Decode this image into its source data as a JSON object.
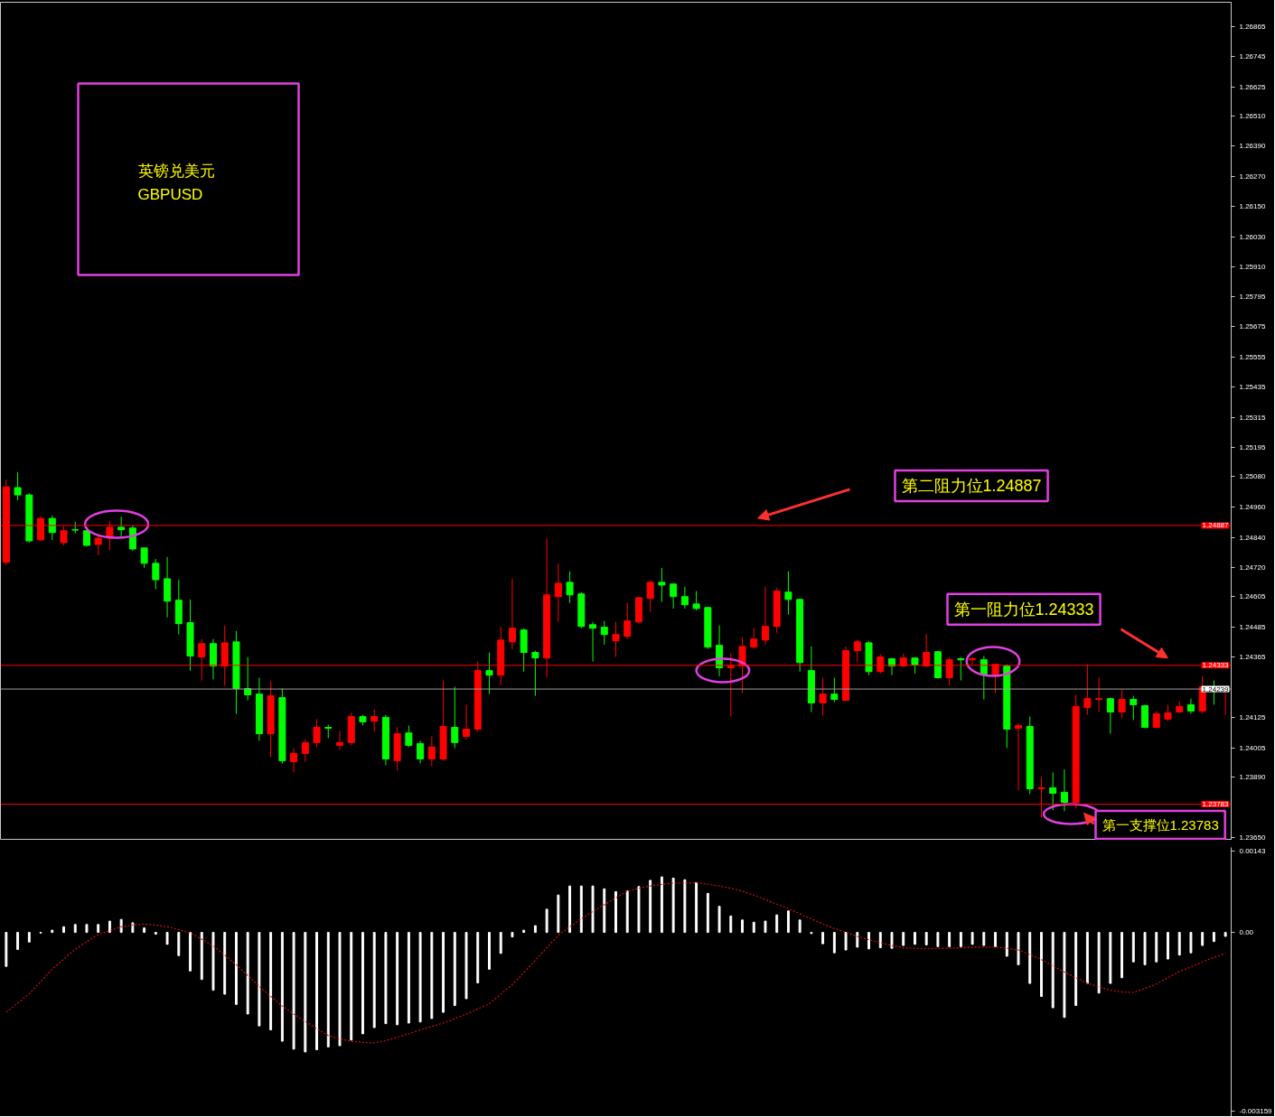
{
  "chart_data": [
    {
      "type": "candlestick",
      "title": "英镑兑美元",
      "subtitle": "GBPUSD",
      "tick_labels": "y",
      "categories": [
        null,
        null,
        null,
        null,
        null,
        null,
        null,
        null,
        null,
        null,
        null,
        null,
        null,
        null,
        null,
        null,
        null,
        null,
        null,
        null,
        null,
        null,
        null,
        null,
        null,
        null,
        null,
        null,
        null,
        null,
        null,
        null,
        null,
        null,
        null,
        null,
        null,
        null,
        null,
        null,
        null,
        null,
        null,
        null,
        null,
        null,
        null,
        null,
        null,
        null,
        null,
        null,
        null,
        null,
        null,
        null,
        null,
        null,
        null,
        null,
        null,
        null,
        null,
        null,
        null,
        null,
        null,
        null,
        null,
        null,
        null,
        null,
        null,
        null,
        null,
        null,
        null,
        null,
        null,
        null,
        null,
        null,
        null,
        null,
        null,
        null,
        null,
        null,
        null,
        null,
        null,
        null,
        null,
        null,
        null,
        null,
        null,
        null,
        null,
        null,
        null,
        null,
        null,
        null,
        null,
        null,
        null
      ],
      "ohlc": [
        [
          1.24741,
          1.25069,
          1.2473,
          1.2504
        ],
        [
          1.25037,
          1.25098,
          1.24987,
          1.25008
        ],
        [
          1.25008,
          1.25015,
          1.24819,
          1.24826
        ],
        [
          1.2483,
          1.24922,
          1.24826,
          1.24915
        ],
        [
          1.24915,
          1.24926,
          1.2483,
          1.24859
        ],
        [
          1.24819,
          1.24884,
          1.24808,
          1.24866
        ],
        [
          1.2487,
          1.24901,
          1.24855,
          1.24869
        ],
        [
          1.24866,
          1.2488,
          1.24805,
          1.24808
        ],
        [
          1.24812,
          1.24844,
          1.24769,
          1.24837
        ],
        [
          1.24837,
          1.24905,
          1.2479,
          1.2488
        ],
        [
          1.2488,
          1.24922,
          1.24844,
          1.2487
        ],
        [
          1.24877,
          1.24887,
          1.24787,
          1.24794
        ],
        [
          1.24798,
          1.24798,
          1.24719,
          1.24737
        ],
        [
          1.24737,
          1.24754,
          1.24634,
          1.24672
        ],
        [
          1.24676,
          1.24762,
          1.24523,
          1.24587
        ],
        [
          1.24591,
          1.24672,
          1.24455,
          1.24498
        ],
        [
          1.24502,
          1.24594,
          1.24312,
          1.2437
        ],
        [
          1.24366,
          1.24437,
          1.24273,
          1.24419
        ],
        [
          1.24419,
          1.24437,
          1.24277,
          1.2433
        ],
        [
          1.2433,
          1.24491,
          1.24252,
          1.24422
        ],
        [
          1.24426,
          1.24469,
          1.24141,
          1.24241
        ],
        [
          1.24241,
          1.24366,
          1.24194,
          1.24216
        ],
        [
          1.24219,
          1.24284,
          1.24034,
          1.24062
        ],
        [
          1.24062,
          1.2427,
          1.23969,
          1.24212
        ],
        [
          1.24205,
          1.24241,
          1.23944,
          1.23955
        ],
        [
          1.23951,
          1.24005,
          1.23909,
          1.23984
        ],
        [
          1.23984,
          1.2404,
          1.23951,
          1.24027
        ],
        [
          1.24027,
          1.2412,
          1.24009,
          1.24087
        ],
        [
          1.24087,
          1.24098,
          1.24044,
          1.24084
        ],
        [
          1.24016,
          1.24073,
          1.23998,
          1.24027
        ],
        [
          1.24027,
          1.24145,
          1.24016,
          1.2413
        ],
        [
          1.2413,
          1.24137,
          1.24094,
          1.24109
        ],
        [
          1.24112,
          1.24159,
          1.24069,
          1.2413
        ],
        [
          1.24127,
          1.24137,
          1.23937,
          1.23962
        ],
        [
          1.23955,
          1.24087,
          1.23916,
          1.24062
        ],
        [
          1.24065,
          1.24094,
          1.24009,
          1.24016
        ],
        [
          1.24023,
          1.24034,
          1.23944,
          1.23962
        ],
        [
          1.23962,
          1.24051,
          1.23933,
          1.24009
        ],
        [
          1.23962,
          1.24273,
          1.23955,
          1.24091
        ],
        [
          1.24087,
          1.24248,
          1.24005,
          1.24027
        ],
        [
          1.24051,
          1.24177,
          1.2404,
          1.2408
        ],
        [
          1.2408,
          1.24348,
          1.24069,
          1.24312
        ],
        [
          1.24312,
          1.24384,
          1.24219,
          1.24294
        ],
        [
          1.24294,
          1.24487,
          1.24255,
          1.24433
        ],
        [
          1.24426,
          1.24676,
          1.24397,
          1.2448
        ],
        [
          1.24473,
          1.2448,
          1.24308,
          1.24384
        ],
        [
          1.24384,
          1.24391,
          1.24212,
          1.24362
        ],
        [
          1.24362,
          1.24837,
          1.24284,
          1.24612
        ],
        [
          1.24605,
          1.24737,
          1.24505,
          1.24658
        ],
        [
          1.24662,
          1.24705,
          1.2458,
          1.24612
        ],
        [
          1.24616,
          1.24623,
          1.2448,
          1.24487
        ],
        [
          1.24494,
          1.24505,
          1.24348,
          1.2448
        ],
        [
          1.24484,
          1.24509,
          1.24415,
          1.24455
        ],
        [
          1.2443,
          1.24505,
          1.24366,
          1.24455
        ],
        [
          1.24448,
          1.2458,
          1.24437,
          1.24509
        ],
        [
          1.24505,
          1.24605,
          1.24498,
          1.24601
        ],
        [
          1.24598,
          1.24669,
          1.24544,
          1.24662
        ],
        [
          1.24662,
          1.24719,
          1.24584,
          1.24651
        ],
        [
          1.24655,
          1.24658,
          1.24558,
          1.24605
        ],
        [
          1.24605,
          1.24644,
          1.24558,
          1.24573
        ],
        [
          1.24576,
          1.24627,
          1.24551,
          1.24558
        ],
        [
          1.24562,
          1.24565,
          1.24398,
          1.24405
        ],
        [
          1.24412,
          1.24491,
          1.2429,
          1.24323
        ],
        [
          1.24323,
          1.2438,
          1.2413,
          1.2433
        ],
        [
          1.2433,
          1.24444,
          1.24223,
          1.24408
        ],
        [
          1.24405,
          1.2448,
          1.24401,
          1.24437
        ],
        [
          1.24433,
          1.24644,
          1.24415,
          1.24487
        ],
        [
          1.24487,
          1.24641,
          1.24462,
          1.24627
        ],
        [
          1.24623,
          1.24705,
          1.24534,
          1.24594
        ],
        [
          1.24594,
          1.24598,
          1.24308,
          1.24344
        ],
        [
          1.24312,
          1.24408,
          1.24148,
          1.24184
        ],
        [
          1.24184,
          1.24284,
          1.24134,
          1.24219
        ],
        [
          1.24219,
          1.24284,
          1.24187,
          1.24198
        ],
        [
          1.24194,
          1.24408,
          1.24191,
          1.24391
        ],
        [
          1.24391,
          1.24433,
          1.24344,
          1.24426
        ],
        [
          1.24422,
          1.2443,
          1.24294,
          1.24308
        ],
        [
          1.24308,
          1.24377,
          1.24301,
          1.24366
        ],
        [
          1.24359,
          1.24362,
          1.24294,
          1.2433
        ],
        [
          1.2433,
          1.2438,
          1.24326,
          1.24362
        ],
        [
          1.24362,
          1.24366,
          1.24301,
          1.24334
        ],
        [
          1.2433,
          1.24458,
          1.24326,
          1.24384
        ],
        [
          1.24387,
          1.24391,
          1.2428,
          1.24284
        ],
        [
          1.24284,
          1.24366,
          1.24252,
          1.24355
        ],
        [
          1.24359,
          1.24366,
          1.24273,
          1.24355
        ],
        [
          1.24355,
          1.24366,
          1.24337,
          1.24359
        ],
        [
          1.24355,
          1.2437,
          1.24198,
          1.24294
        ],
        [
          1.24294,
          1.2434,
          1.24223,
          1.24337
        ],
        [
          1.2433,
          1.24337,
          1.24005,
          1.2408
        ],
        [
          1.24084,
          1.24105,
          1.23837,
          1.24094
        ],
        [
          1.24091,
          1.2413,
          1.23823,
          1.23844
        ],
        [
          1.23844,
          1.23891,
          1.2373,
          1.23848
        ],
        [
          1.23848,
          1.23909,
          1.23759,
          1.23826
        ],
        [
          1.2383,
          1.2392,
          1.23755,
          1.2379
        ],
        [
          1.2379,
          1.24216,
          1.23766,
          1.2417
        ],
        [
          1.24166,
          1.24337,
          1.24137,
          1.24201
        ],
        [
          1.24198,
          1.24284,
          1.24148,
          1.24201
        ],
        [
          1.24201,
          1.24205,
          1.24062,
          1.24148
        ],
        [
          1.24148,
          1.24237,
          1.24123,
          1.24198
        ],
        [
          1.24198,
          1.24212,
          1.24116,
          1.24177
        ],
        [
          1.24173,
          1.24177,
          1.24084,
          1.24087
        ],
        [
          1.24087,
          1.24152,
          1.24084,
          1.24141
        ],
        [
          1.2412,
          1.24177,
          1.24112,
          1.24145
        ],
        [
          1.24148,
          1.24191,
          1.24145,
          1.2417
        ],
        [
          1.24177,
          1.24201,
          1.24141,
          1.24152
        ],
        [
          1.24152,
          1.2429,
          1.24141,
          1.24248
        ],
        [
          1.24248,
          1.24273,
          1.24177,
          1.24241
        ],
        [
          1.24239,
          1.24244,
          1.24137,
          1.24239
        ]
      ],
      "colors": [
        "#ff0000",
        "#00ff00",
        "#00ff00",
        "#ff0000",
        "#00ff00",
        "#ff0000",
        "#00ff00",
        "#00ff00",
        "#ff0000",
        "#ff0000",
        "#00ff00",
        "#00ff00",
        "#00ff00",
        "#00ff00",
        "#00ff00",
        "#00ff00",
        "#00ff00",
        "#ff0000",
        "#00ff00",
        "#ff0000",
        "#00ff00",
        "#00ff00",
        "#00ff00",
        "#ff0000",
        "#00ff00",
        "#ff0000",
        "#ff0000",
        "#ff0000",
        "#00ff00",
        "#ff0000",
        "#ff0000",
        "#00ff00",
        "#ff0000",
        "#00ff00",
        "#ff0000",
        "#00ff00",
        "#00ff00",
        "#ff0000",
        "#ff0000",
        "#00ff00",
        "#ff0000",
        "#ff0000",
        "#00ff00",
        "#ff0000",
        "#ff0000",
        "#00ff00",
        "#00ff00",
        "#ff0000",
        "#ff0000",
        "#00ff00",
        "#00ff00",
        "#00ff00",
        "#00ff00",
        "#ff0000",
        "#ff0000",
        "#ff0000",
        "#ff0000",
        "#00ff00",
        "#00ff00",
        "#00ff00",
        "#00ff00",
        "#00ff00",
        "#00ff00",
        "#ff0000",
        "#ff0000",
        "#ff0000",
        "#ff0000",
        "#ff0000",
        "#00ff00",
        "#00ff00",
        "#00ff00",
        "#ff0000",
        "#00ff00",
        "#ff0000",
        "#ff0000",
        "#00ff00",
        "#ff0000",
        "#00ff00",
        "#ff0000",
        "#00ff00",
        "#ff0000",
        "#00ff00",
        "#ff0000",
        "#00ff00",
        "#ff0000",
        "#00ff00",
        "#ff0000",
        "#00ff00",
        "#ff0000",
        "#00ff00",
        "#ff0000",
        "#00ff00",
        "#00ff00",
        "#ff0000",
        "#ff0000",
        "#ff0000",
        "#00ff00",
        "#ff0000",
        "#00ff00",
        "#00ff00",
        "#ff0000",
        "#ff0000",
        "#ff0000",
        "#00ff00",
        "#ff0000",
        "#00ff00",
        "#ff0000"
      ],
      "ylim": [
        1.2364,
        1.2696
      ],
      "yticks": [
        {
          "value": 1.26865,
          "label": "1.26865"
        },
        {
          "value": 1.26745,
          "label": "1.26745"
        },
        {
          "value": 1.26625,
          "label": "1.26625"
        },
        {
          "value": 1.2651,
          "label": "1.26510"
        },
        {
          "value": 1.2639,
          "label": "1.26390"
        },
        {
          "value": 1.2627,
          "label": "1.26270"
        },
        {
          "value": 1.2615,
          "label": "1.26150"
        },
        {
          "value": 1.2603,
          "label": "1.26030"
        },
        {
          "value": 1.2591,
          "label": "1.25910"
        },
        {
          "value": 1.25795,
          "label": "1.25795"
        },
        {
          "value": 1.25675,
          "label": "1.25675"
        },
        {
          "value": 1.25555,
          "label": "1.25555"
        },
        {
          "value": 1.25435,
          "label": "1.25435"
        },
        {
          "value": 1.25315,
          "label": "1.25315"
        },
        {
          "value": 1.25195,
          "label": "1.25195"
        },
        {
          "value": 1.2508,
          "label": "1.25080"
        },
        {
          "value": 1.2496,
          "label": "1.24960"
        },
        {
          "value": 1.2484,
          "label": "1.24840"
        },
        {
          "value": 1.2472,
          "label": "1.24720"
        },
        {
          "value": 1.24605,
          "label": "1.24605"
        },
        {
          "value": 1.24485,
          "label": "1.24485"
        },
        {
          "value": 1.24365,
          "label": "1.24365"
        },
        {
          "value": 1.24125,
          "label": "1.24125"
        },
        {
          "value": 1.24005,
          "label": "1.24005"
        },
        {
          "value": 1.2389,
          "label": "1.23890"
        },
        {
          "value": 1.2365,
          "label": "1.23650"
        }
      ],
      "ref_lines": [
        {
          "axis": "y",
          "value": 1.24887,
          "label": "1.24887",
          "color": "#ff0000"
        },
        {
          "axis": "y",
          "value": 1.24333,
          "label": "1.24333",
          "color": "#ff0000"
        },
        {
          "axis": "y",
          "value": 1.24239,
          "label": "1.24239",
          "color": "#a0a0a0"
        },
        {
          "axis": "y",
          "value": 1.23783,
          "label": "1.23783",
          "color": "#ff0000"
        }
      ],
      "annotations": [
        {
          "text": "第二阻力位1.24887",
          "y": 1.24887
        },
        {
          "text": "第一阻力位1.24333",
          "y": 1.24333
        },
        {
          "text": "第一支撑位1.23783",
          "y": 1.23783
        }
      ]
    },
    {
      "type": "bar",
      "tick_labels": "y",
      "categories": [
        null,
        null,
        null,
        null,
        null,
        null,
        null,
        null,
        null,
        null,
        null,
        null,
        null,
        null,
        null,
        null,
        null,
        null,
        null,
        null,
        null,
        null,
        null,
        null,
        null,
        null,
        null,
        null,
        null,
        null,
        null,
        null,
        null,
        null,
        null,
        null,
        null,
        null,
        null,
        null,
        null,
        null,
        null,
        null,
        null,
        null,
        null,
        null,
        null,
        null,
        null,
        null,
        null,
        null,
        null,
        null,
        null,
        null,
        null,
        null,
        null,
        null,
        null,
        null,
        null,
        null,
        null,
        null,
        null,
        null,
        null,
        null,
        null,
        null,
        null,
        null,
        null,
        null,
        null,
        null,
        null,
        null,
        null,
        null,
        null,
        null,
        null,
        null,
        null,
        null,
        null,
        null,
        null,
        null,
        null,
        null,
        null,
        null,
        null,
        null,
        null,
        null,
        null,
        null,
        null,
        null,
        null
      ],
      "series": [
        {
          "type": "bar",
          "color": "#ffffff",
          "values": [
            -0.0006,
            -0.0003,
            -0.00017,
            -1e-05,
            4e-05,
            0.0001,
            0.00014,
            0.00014,
            0.00014,
            0.0002,
            0.00023,
            0.00017,
            8e-05,
            -3e-05,
            -0.00021,
            -0.00041,
            -0.00068,
            -0.00083,
            -0.00102,
            -0.00109,
            -0.00127,
            -0.00144,
            -0.00165,
            -0.00172,
            -0.00192,
            -0.00206,
            -0.00211,
            -0.00207,
            -0.00202,
            -0.002,
            -0.0019,
            -0.00179,
            -0.00168,
            -0.00161,
            -0.00163,
            -0.0016,
            -0.00158,
            -0.00152,
            -0.00141,
            -0.00129,
            -0.00117,
            -0.00089,
            -0.00065,
            -0.00037,
            -8e-05,
            4e-05,
            0.00012,
            0.00041,
            0.00066,
            0.00082,
            0.00082,
            0.00082,
            0.00077,
            0.00072,
            0.00073,
            0.00081,
            0.00092,
            0.00098,
            0.00096,
            0.00093,
            0.00088,
            0.00069,
            0.00046,
            0.00029,
            0.00022,
            0.00018,
            0.0002,
            0.00031,
            0.00038,
            0.00022,
            -2e-05,
            -0.0002,
            -0.00036,
            -0.00031,
            -0.00026,
            -0.00029,
            -0.00027,
            -0.00028,
            -0.00023,
            -0.00021,
            -0.00022,
            -0.00025,
            -0.00025,
            -0.00025,
            -0.00021,
            -0.00023,
            -0.00025,
            -0.00042,
            -0.00057,
            -0.0009,
            -0.00113,
            -0.00133,
            -0.0015,
            -0.00129,
            -0.0009,
            -0.00107,
            -0.0009,
            -0.0008,
            -0.00052,
            -0.00057,
            -0.00052,
            -0.00047,
            -0.0004,
            -0.00036,
            -0.00023,
            -0.00016,
            -7e-05
          ]
        },
        {
          "type": "line",
          "color": "#d01010",
          "line_style": "dotted",
          "values": [
            -0.00141,
            -0.00125,
            -0.00108,
            -0.00087,
            -0.00065,
            -0.00047,
            -0.0003,
            -0.00016,
            -4e-05,
            3e-05,
            0.0001,
            0.00013,
            0.00015,
            0.00013,
            0.0001,
            5e-05,
            -1e-05,
            -0.00012,
            -0.00024,
            -0.0004,
            -0.00057,
            -0.00076,
            -0.00095,
            -0.00113,
            -0.0013,
            -0.00144,
            -0.00157,
            -0.0017,
            -0.00182,
            -0.00188,
            -0.00192,
            -0.00194,
            -0.00195,
            -0.00191,
            -0.00185,
            -0.00179,
            -0.00172,
            -0.00166,
            -0.0016,
            -0.00152,
            -0.00144,
            -0.00135,
            -0.00126,
            -0.00109,
            -0.00092,
            -0.00071,
            -0.00049,
            -0.00027,
            -5e-05,
            0.0001,
            0.00024,
            0.00037,
            0.00049,
            0.00061,
            0.00073,
            0.00078,
            0.00082,
            0.00085,
            0.00087,
            0.00087,
            0.00088,
            0.00085,
            0.00082,
            0.00078,
            0.00073,
            0.00066,
            0.00058,
            0.0005,
            0.00042,
            0.00033,
            0.00024,
            0.00015,
            7e-05,
            0.0,
            -7e-05,
            -0.00013,
            -0.00018,
            -0.00023,
            -0.00027,
            -0.00028,
            -0.00029,
            -0.00028,
            -0.00028,
            -0.00027,
            -0.00026,
            -0.00026,
            -0.00026,
            -0.00028,
            -0.00031,
            -0.00039,
            -0.00048,
            -0.00059,
            -0.0007,
            -0.0008,
            -0.0009,
            -0.00096,
            -0.00102,
            -0.00105,
            -0.00106,
            -0.00099,
            -0.00091,
            -0.0008,
            -0.00069,
            -0.00061,
            -0.00052,
            -0.00044,
            -0.00037
          ]
        }
      ],
      "ylim": [
        -0.00325,
        0.0015
      ],
      "yticks": [
        {
          "value": 0.00143,
          "label": "0.00143"
        },
        {
          "value": 0,
          "label": "0.00"
        },
        {
          "value": -0.003159,
          "label": "-0.003159"
        }
      ]
    }
  ]
}
